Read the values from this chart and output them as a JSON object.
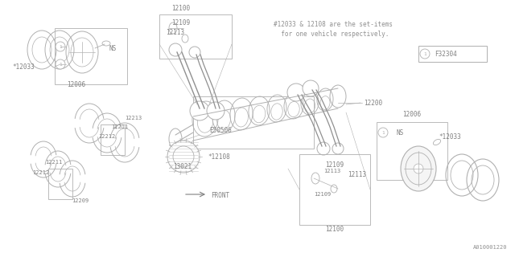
{
  "bg_color": "#ffffff",
  "line_color": "#a0a0a0",
  "text_color": "#808080",
  "fig_width": 6.4,
  "fig_height": 3.2,
  "dpi": 100,
  "note_line1": "#12033 & 12108 are the set-items",
  "note_line2": "  for one vehicle respectively.",
  "catalog": "A010001220",
  "diagram_id": "F32304",
  "parts": {
    "top_box_label": "12100",
    "top_box_sub1": "12109",
    "top_box_sub2": "12113",
    "crankshaft": "12200",
    "bearing_set": "*12108",
    "sprocket_label": "E50506",
    "front_gear": "13021",
    "bearing1": "12213",
    "bearing2a": "12211",
    "bearing2b": "12212",
    "bearing3a": "12211",
    "bearing3b": "12212",
    "thrust": "12209",
    "piston_left_box": "12006",
    "piston_left_rings": "*12033",
    "ns_left": "NS",
    "piston_right_box": "12006",
    "piston_right_rings": "*12033",
    "ns_right": "NS",
    "rod_right1": "12113",
    "rod_right2": "12109",
    "rod_right_box": "12100",
    "front_label": "FRONT"
  },
  "colors": {
    "line": "#b0b0b0",
    "text": "#808080",
    "bg": "#ffffff",
    "dark_line": "#909090"
  }
}
